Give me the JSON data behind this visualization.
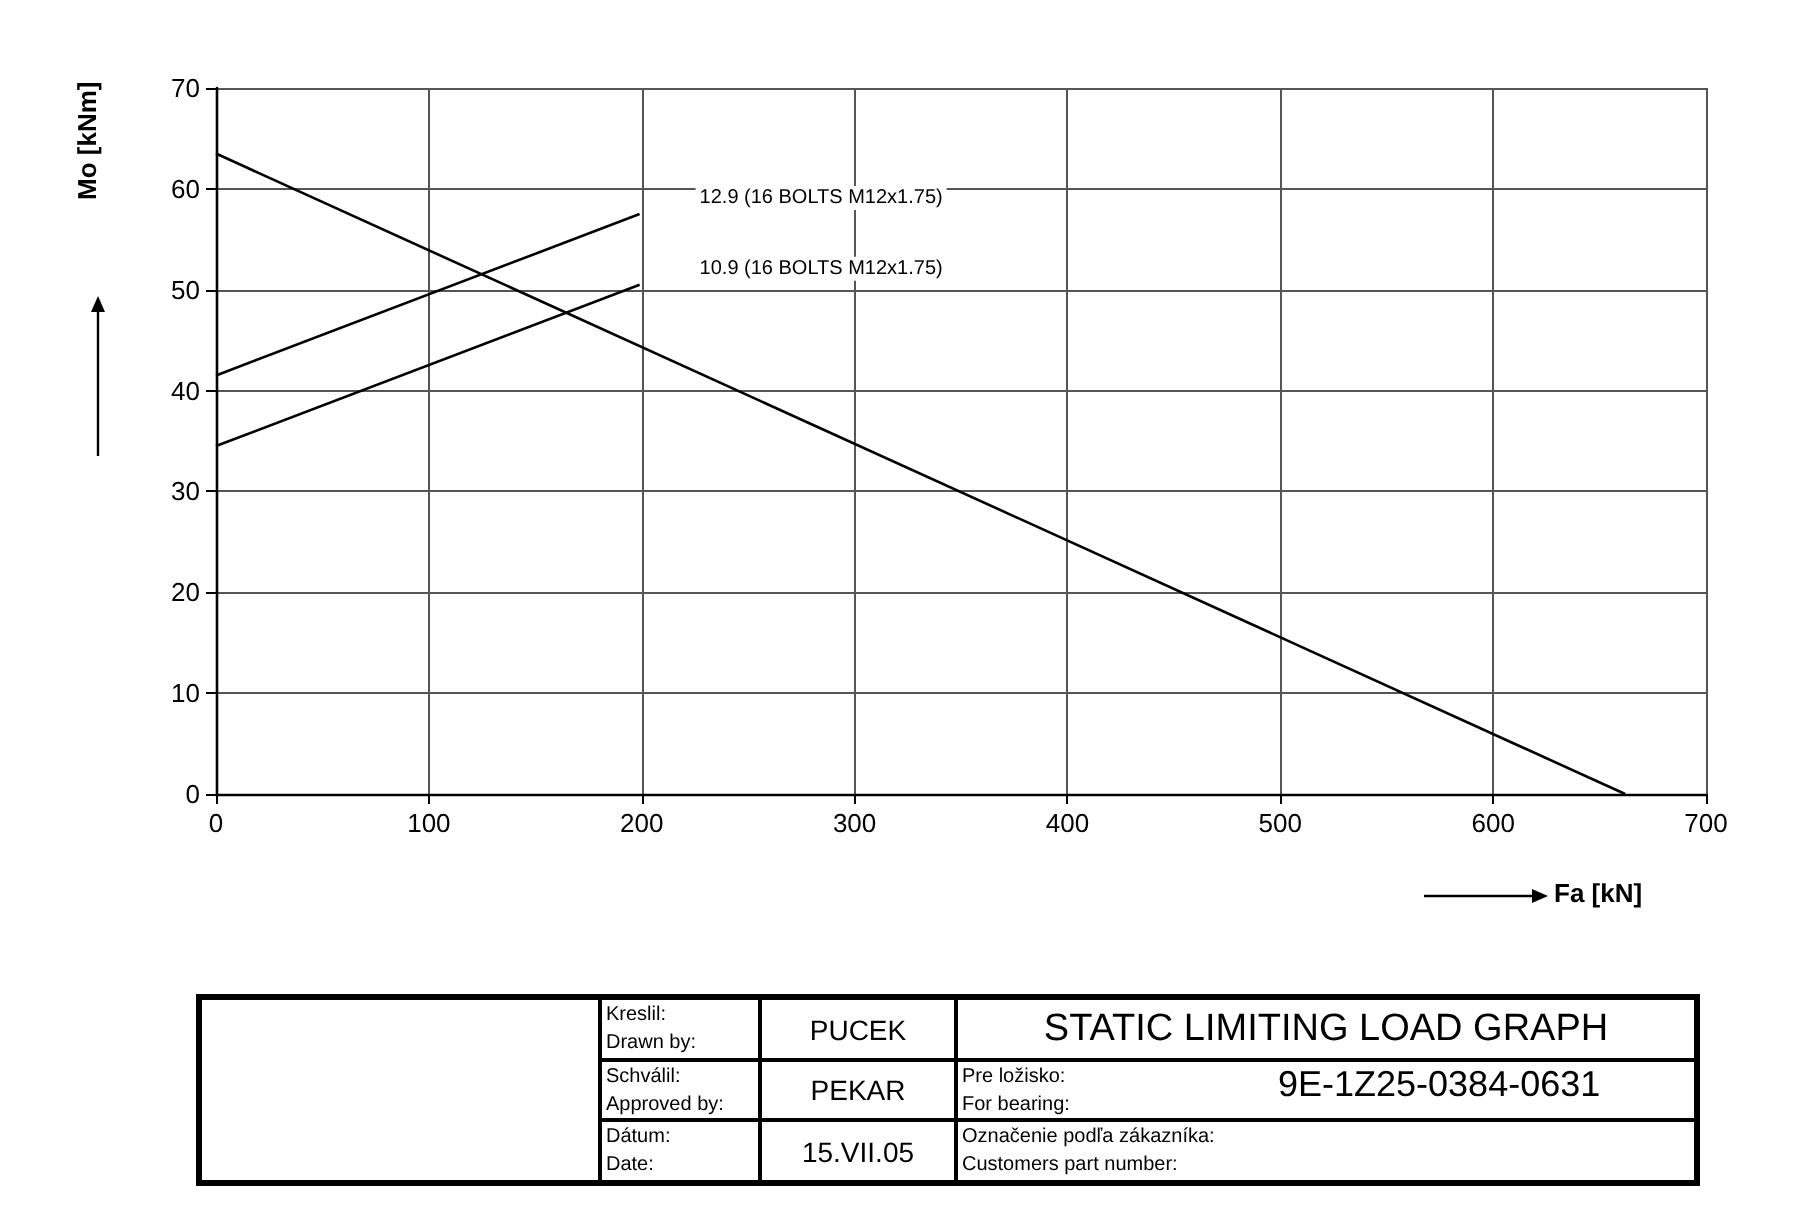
{
  "chart_data": {
    "type": "line",
    "title": "STATIC LIMITING LOAD GRAPH",
    "xlabel": "Fa [kN]",
    "ylabel": "Mo [kNm]",
    "series": [
      {
        "color": "#000000",
        "x": [
          0,
          662
        ],
        "values": [
          63.5,
          0
        ]
      },
      {
        "name": "12.9 (16 BOLTS M12x1.75)",
        "color": "#000000",
        "x": [
          0,
          199
        ],
        "values": [
          41.5,
          57.5
        ]
      },
      {
        "name": "10.9 (16 BOLTS M12x1.75)",
        "color": "#000000",
        "x": [
          0,
          199
        ],
        "values": [
          34.5,
          50.5
        ]
      }
    ],
    "xlim": [
      0,
      700
    ],
    "xticks": [
      0,
      100,
      200,
      300,
      400,
      500,
      600,
      700
    ],
    "ylim": [
      0,
      70
    ],
    "yticks": [
      0,
      10,
      20,
      30,
      40,
      50,
      60,
      70
    ],
    "grid": true,
    "legend": false,
    "marker": "none",
    "line_style": "solid",
    "annotations": [
      "Kreslil:\nDrawn by:",
      "PUCEK",
      "Schválil:\nApproved by:",
      "PEKAR",
      "Dátum:\nDate:",
      "15.VII.05",
      "Pre ložisko:\nFor bearing:",
      "9E-1Z25-0384-0631",
      "Označenie podľa zákazníka:\nCustomers part number:"
    ]
  }
}
